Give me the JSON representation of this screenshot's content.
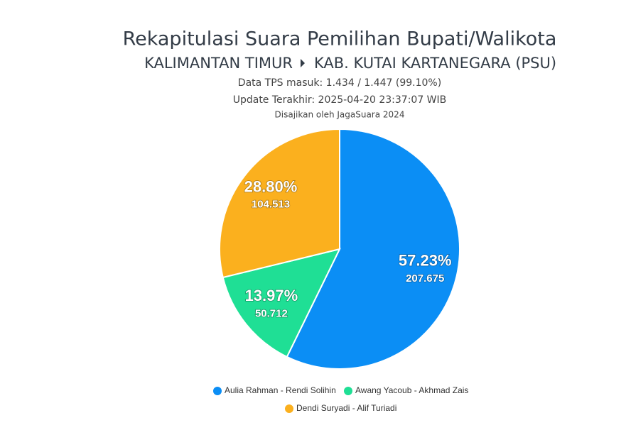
{
  "chart_data": {
    "type": "pie",
    "title": "Rekapitulasi Suara Pemilihan Bupati/Walikota",
    "subtitle": [
      "KALIMANTAN TIMUR",
      "KAB. KUTAI KARTANEGARA (PSU)"
    ],
    "notes": [
      "Data TPS masuk: 1.434 / 1.447 (99.10%)",
      "Update Terakhir: 2025-04-20 23:37:07 WIB",
      "Disajikan oleh JagaSuara 2024"
    ],
    "categories": [
      "Aulia Rahman - Rendi Solihin",
      "Awang Yacoub - Akhmad Zais",
      "Dendi Suryadi - Alif Turiadi"
    ],
    "values": [
      57.23,
      13.97,
      28.8
    ],
    "value_labels": [
      "57.23%",
      "13.97%",
      "28.80%"
    ],
    "counts": [
      {
        "value": 207675,
        "label": "207.675"
      },
      {
        "value": 50712,
        "label": "50.712"
      },
      {
        "value": 104513,
        "label": "104.513"
      }
    ],
    "colors": [
      "#0b8ef5",
      "#1fdf95",
      "#fbb01e"
    ]
  }
}
